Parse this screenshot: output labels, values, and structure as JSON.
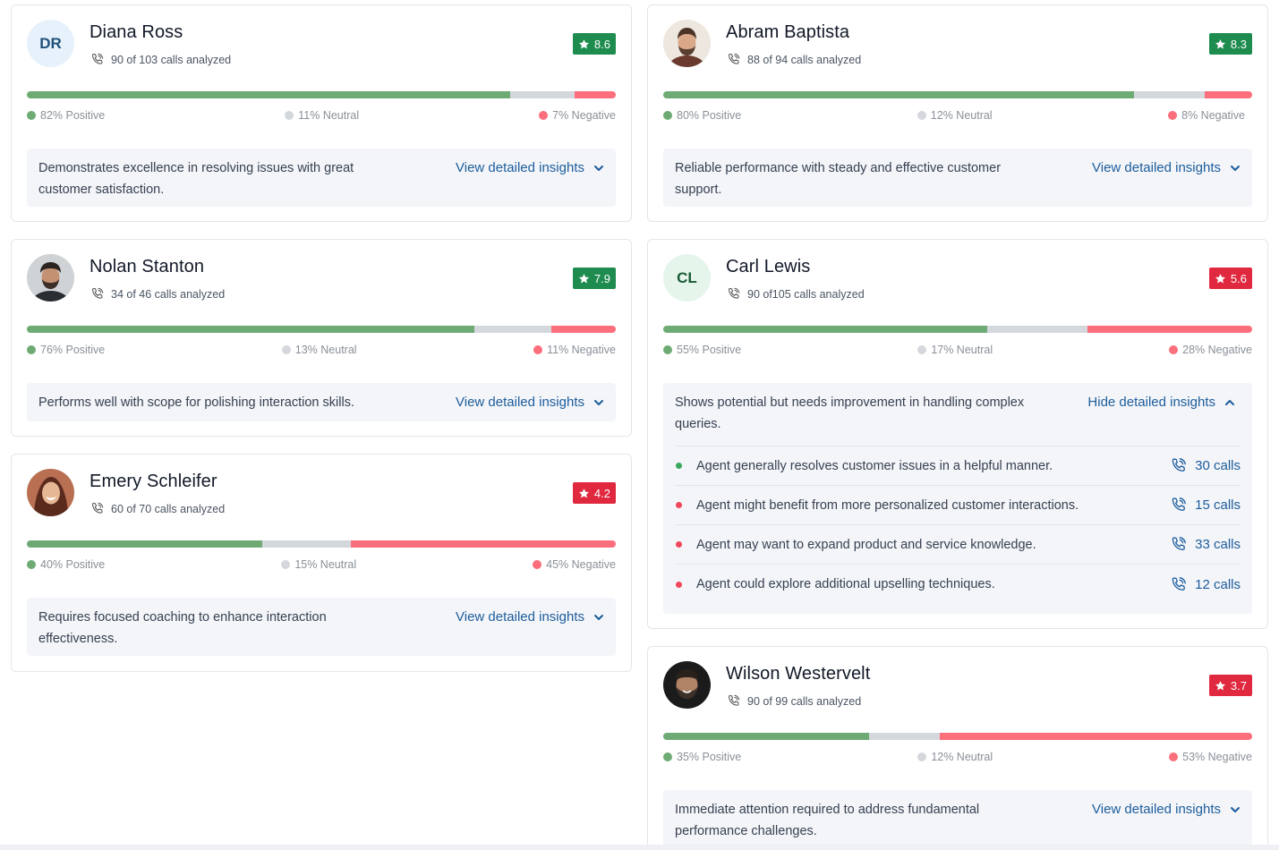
{
  "agents": [
    {
      "id": "diana",
      "name": "Diana Ross",
      "initials": "DR",
      "calls": "90 of 103 calls analyzed",
      "score": "8.6",
      "score_status": "good",
      "positive": 82,
      "neutral": 11,
      "negative": 7,
      "positive_label": "82% Positive",
      "neutral_label": "11% Neutral",
      "negative_label": "7% Negative",
      "summary": "Demonstrates excellence in resolving issues with great customer satisfaction.",
      "toggle_label": "View detailed insights"
    },
    {
      "id": "abram",
      "name": "Abram Baptista",
      "calls": "88 of 94 calls analyzed",
      "score": "8.3",
      "score_status": "good",
      "positive": 80,
      "neutral": 12,
      "negative": 8,
      "positive_label": "80% Positive",
      "neutral_label": "12% Neutral",
      "negative_label": "8% Negative",
      "summary": "Reliable performance with steady and effective customer support.",
      "toggle_label": "View detailed insights"
    },
    {
      "id": "nolan",
      "name": "Nolan Stanton",
      "calls": "34 of 46 calls analyzed",
      "score": "7.9",
      "score_status": "good",
      "positive": 76,
      "neutral": 13,
      "negative": 11,
      "positive_label": "76% Positive",
      "neutral_label": "13% Neutral",
      "negative_label": "11% Negative",
      "summary": "Performs well with scope for polishing interaction skills.",
      "toggle_label": "View detailed insights"
    },
    {
      "id": "carl",
      "name": "Carl Lewis",
      "initials": "CL",
      "calls": "90 of105 calls analyzed",
      "score": "5.6",
      "score_status": "bad",
      "positive": 55,
      "neutral": 17,
      "negative": 28,
      "positive_label": "55% Positive",
      "neutral_label": "17% Neutral",
      "negative_label": "28% Negative",
      "summary": "Shows potential but needs improvement in handling complex queries.",
      "toggle_label": "Hide detailed insights",
      "insights": [
        {
          "text": "Agent generally resolves customer issues in a helpful manner.",
          "sentiment": "positive",
          "calls": "30 calls"
        },
        {
          "text": "Agent might benefit from more personalized customer interactions.",
          "sentiment": "negative",
          "calls": "15 calls"
        },
        {
          "text": "Agent may want to expand product and service knowledge.",
          "sentiment": "negative",
          "calls": "33 calls"
        },
        {
          "text": "Agent could explore additional upselling techniques.",
          "sentiment": "negative",
          "calls": "12 calls"
        }
      ]
    },
    {
      "id": "emery",
      "name": "Emery Schleifer",
      "calls": "60 of 70 calls analyzed",
      "score": "4.2",
      "score_status": "bad",
      "positive": 40,
      "neutral": 15,
      "negative": 45,
      "positive_label": "40% Positive",
      "neutral_label": "15% Neutral",
      "negative_label": "45% Negative",
      "summary": "Requires focused coaching to enhance interaction effectiveness.",
      "toggle_label": "View detailed insights"
    },
    {
      "id": "wilson",
      "name": "Wilson Westervelt",
      "calls": "90 of 99 calls analyzed",
      "score": "3.7",
      "score_status": "bad",
      "positive": 35,
      "neutral": 12,
      "negative": 53,
      "positive_label": "35% Positive",
      "neutral_label": "12% Neutral",
      "negative_label": "53% Negative",
      "summary": "Immediate attention required to address fundamental performance challenges.",
      "toggle_label": "View detailed insights"
    }
  ],
  "colors": {
    "positive": "#6eab74",
    "neutral": "#d4d8dc",
    "negative": "#fb6e7b",
    "score_good": "#1e8c4e",
    "score_bad": "#e0283f",
    "link": "#1d5d9c"
  }
}
